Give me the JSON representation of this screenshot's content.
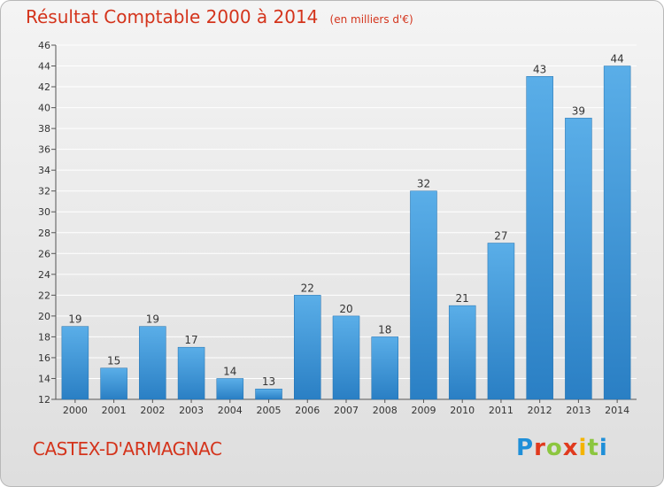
{
  "title": "Résultat Comptable 2000 à 2014",
  "subtitle": "(en milliers d'€)",
  "place_name": "CASTEX-D'ARMAGNAC",
  "logo_text": "Proxiti",
  "colors": {
    "title": "#d4341c",
    "bar_light": "#5aaee8",
    "bar_dark": "#2a7fc4",
    "grid": "#ffffff",
    "axis_text": "#333333"
  },
  "chart_data": {
    "type": "bar",
    "title": "Résultat Comptable 2000 à 2014",
    "subtitle": "(en milliers d'€)",
    "xlabel": "",
    "ylabel": "",
    "categories": [
      "2000",
      "2001",
      "2002",
      "2003",
      "2004",
      "2005",
      "2006",
      "2007",
      "2008",
      "2009",
      "2010",
      "2011",
      "2012",
      "2013",
      "2014"
    ],
    "values": [
      19,
      15,
      19,
      17,
      14,
      13,
      22,
      20,
      18,
      32,
      21,
      27,
      43,
      39,
      44
    ],
    "ylim": [
      12,
      46
    ],
    "yticks": [
      12,
      14,
      16,
      18,
      20,
      22,
      24,
      26,
      28,
      30,
      32,
      34,
      36,
      38,
      40,
      42,
      44,
      46
    ],
    "grid": true,
    "data_labels": true
  }
}
